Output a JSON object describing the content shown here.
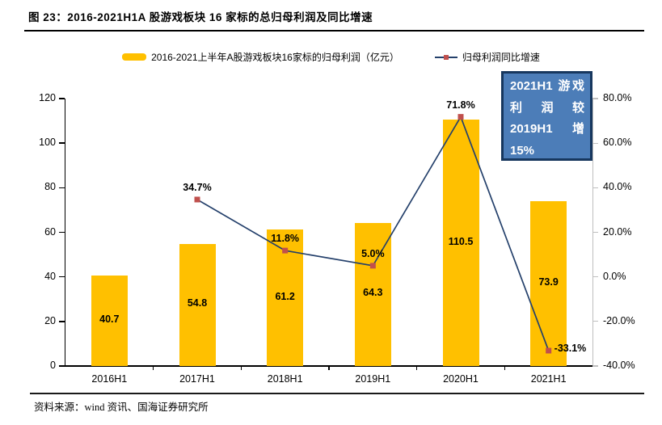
{
  "figure": {
    "title": "图 23：2016-2021H1A 股游戏板块 16 家标的总归母利润及同比增速",
    "source": "资料来源：wind 资讯、国海证券研究所"
  },
  "legend": {
    "bar_label": "2016-2021上半年A股游戏板块16家标的归母利润（亿元）",
    "line_label": "归母利润同比增速"
  },
  "annotation": {
    "text": "2021H1 游戏利润较 2019H1 增 15%",
    "bg_color": "#4c7db8",
    "border_color": "#17375e"
  },
  "colors": {
    "bar": "#ffc000",
    "line": "#24406b",
    "marker": "#c0504d",
    "right_axis": "#bfbfbf"
  },
  "chart_data": {
    "type": "bar+line combo",
    "categories": [
      "2016H1",
      "2017H1",
      "2018H1",
      "2019H1",
      "2020H1",
      "2021H1"
    ],
    "series": [
      {
        "name": "2016-2021上半年A股游戏板块16家标的归母利润（亿元）",
        "type": "bar",
        "axis": "left",
        "values": [
          40.7,
          54.8,
          61.2,
          64.3,
          110.5,
          73.9
        ],
        "labels": [
          "40.7",
          "54.8",
          "61.2",
          "64.3",
          "110.5",
          "73.9"
        ]
      },
      {
        "name": "归母利润同比增速",
        "type": "line",
        "axis": "right",
        "values": [
          null,
          34.7,
          11.8,
          5.0,
          71.8,
          -33.1
        ],
        "labels": [
          null,
          "34.7%",
          "11.8%",
          "5.0%",
          "71.8%",
          "-33.1%"
        ]
      }
    ],
    "left_axis": {
      "min": 0,
      "max": 120,
      "step": 20,
      "ticks": [
        "0",
        "20",
        "40",
        "60",
        "80",
        "100",
        "120"
      ]
    },
    "right_axis": {
      "min": -40,
      "max": 80,
      "step": 20,
      "ticks": [
        "-40.0%",
        "-20.0%",
        "0.0%",
        "20.0%",
        "40.0%",
        "60.0%",
        "80.0%"
      ]
    },
    "grid": false,
    "legend_position": "top"
  }
}
